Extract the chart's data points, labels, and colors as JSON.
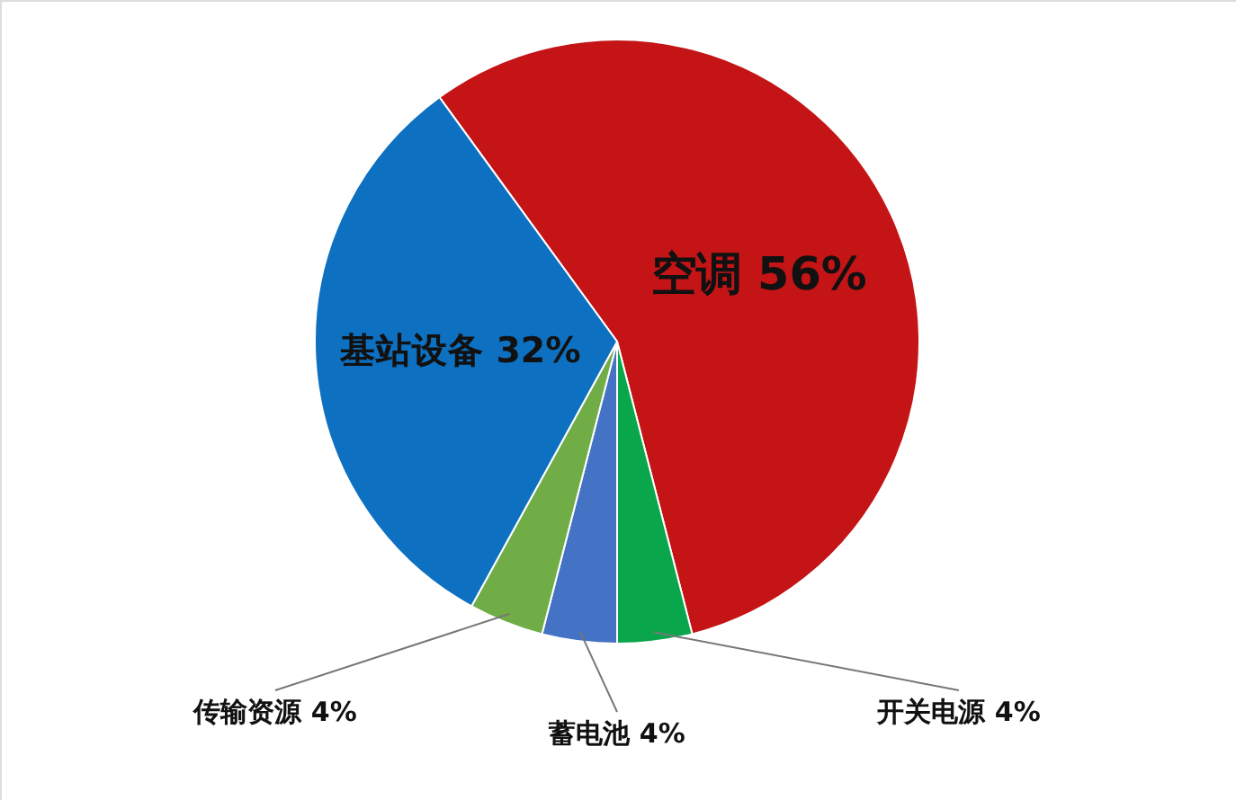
{
  "chart_data": {
    "type": "pie",
    "categories": [
      "空调",
      "开关电源",
      "蓄电池",
      "传输资源",
      "基站设备"
    ],
    "values": [
      56,
      4,
      4,
      4,
      32
    ],
    "colors": [
      "#c41416",
      "#0aa64c",
      "#4472c4",
      "#70ad47",
      "#0e70c0"
    ],
    "value_labels": [
      "56%",
      "4%",
      "4%",
      "4%",
      "32%"
    ]
  }
}
